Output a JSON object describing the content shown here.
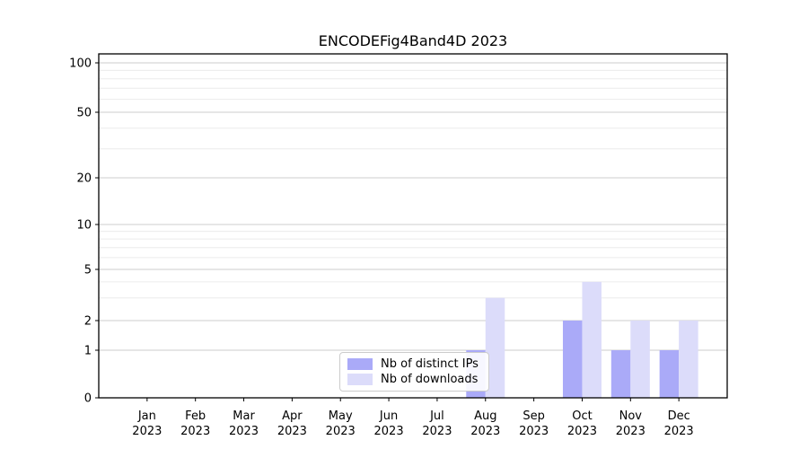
{
  "title": "ENCODEFig4Band4D 2023",
  "chart_data": {
    "type": "bar",
    "title": "ENCODEFig4Band4D 2023",
    "categories": [
      "Jan 2023",
      "Feb 2023",
      "Mar 2023",
      "Apr 2023",
      "May 2023",
      "Jun 2023",
      "Jul 2023",
      "Aug 2023",
      "Sep 2023",
      "Oct 2023",
      "Nov 2023",
      "Dec 2023"
    ],
    "series": [
      {
        "name": "Nb of distinct IPs",
        "color": "#aaaaf8",
        "values": [
          0,
          0,
          0,
          0,
          0,
          0,
          0,
          1,
          0,
          2,
          1,
          1
        ]
      },
      {
        "name": "Nb of downloads",
        "color": "#dcdcfa",
        "values": [
          0,
          0,
          0,
          0,
          0,
          0,
          0,
          3,
          0,
          4,
          2,
          2
        ]
      }
    ],
    "y_axis": {
      "scale": "log-like",
      "ticks": [
        0,
        1,
        2,
        5,
        10,
        20,
        50,
        100
      ],
      "minor_ticks": [
        3,
        4,
        6,
        7,
        8,
        9,
        30,
        40,
        60,
        70,
        80,
        90
      ],
      "ylim": [
        0,
        113
      ]
    },
    "xlabel": "",
    "ylabel": "",
    "grid": true,
    "legend": {
      "position": "lower center",
      "entries": [
        "Nb of distinct IPs",
        "Nb of downloads"
      ]
    }
  },
  "colors": {
    "axis": "#000000",
    "grid_major": "#cccccc",
    "grid_minor": "#ececec",
    "background": "#ffffff",
    "legend_border": "#cccccc"
  }
}
